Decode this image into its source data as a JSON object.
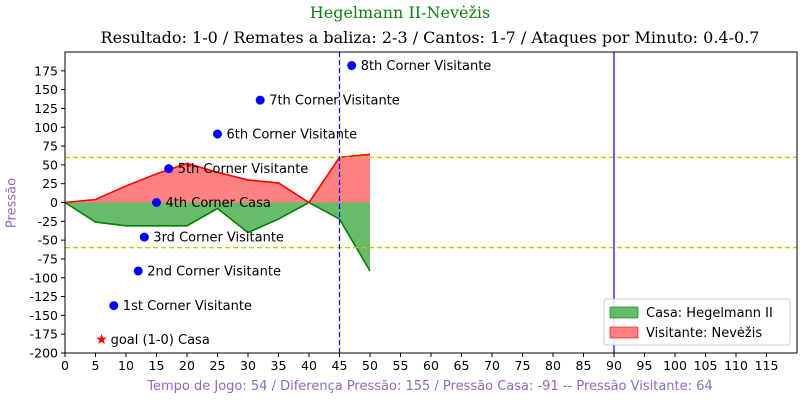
{
  "chart_data": {
    "type": "area",
    "title": "Hegelmann II-Nevėžis",
    "subtitle": "Resultado: 1-0 / Remates a baliza: 2-3 / Cantos: 1-7 / Ataques por Minuto: 0.4-0.7",
    "xlabel": "Tempo de Jogo: 54 / Diferença Pressão: 155 / Pressão Casa: -91 -- Pressão Visitante: 64",
    "ylabel": "Pressão",
    "xlim": [
      0,
      120
    ],
    "ylim": [
      -200,
      200
    ],
    "xticks": [
      0,
      5,
      10,
      15,
      20,
      25,
      30,
      35,
      40,
      45,
      50,
      55,
      60,
      65,
      70,
      75,
      80,
      85,
      90,
      95,
      100,
      105,
      110,
      115
    ],
    "yticks": [
      -200,
      -175,
      -150,
      -125,
      -100,
      -75,
      -50,
      -25,
      0,
      25,
      50,
      75,
      100,
      125,
      150,
      175
    ],
    "series": [
      {
        "name": "Casa: Hegelmann II",
        "color": "#008000",
        "fill": "#4caf50",
        "x": [
          0,
          5,
          10,
          15,
          20,
          25,
          30,
          35,
          40,
          45,
          50
        ],
        "values": [
          0,
          -26,
          -31,
          -31,
          -31,
          -8,
          -40,
          -22,
          0,
          -22,
          -91
        ]
      },
      {
        "name": "Visitante: Nevėžis",
        "color": "#ff0000",
        "fill": "#ff6b6b",
        "x": [
          0,
          5,
          10,
          15,
          20,
          25,
          30,
          35,
          40,
          45,
          50
        ],
        "values": [
          0,
          4,
          22,
          38,
          52,
          40,
          30,
          26,
          0,
          60,
          64
        ]
      }
    ],
    "hlines": [
      {
        "y": 60,
        "color": "#c8c800"
      },
      {
        "y": -60,
        "color": "#c8c800"
      }
    ],
    "vlines": [
      {
        "x": 45,
        "color": "#0000ff",
        "style": "dashed"
      },
      {
        "x": 90,
        "color": "#0000ff",
        "style": "solid"
      }
    ],
    "annotations": [
      {
        "x": 6,
        "y": -182,
        "marker": "star",
        "color": "#ff0000",
        "text": "goal (1-0) Casa"
      },
      {
        "x": 8,
        "y": -137,
        "marker": "dot",
        "color": "#0000ff",
        "text": "1st Corner Visitante"
      },
      {
        "x": 12,
        "y": -91,
        "marker": "dot",
        "color": "#0000ff",
        "text": "2nd Corner Visitante"
      },
      {
        "x": 13,
        "y": -46,
        "marker": "dot",
        "color": "#0000ff",
        "text": "3rd Corner Visitante"
      },
      {
        "x": 15,
        "y": 0,
        "marker": "dot",
        "color": "#0000ff",
        "text": "4th Corner Casa"
      },
      {
        "x": 17,
        "y": 45,
        "marker": "dot",
        "color": "#0000ff",
        "text": "5th Corner Visitante"
      },
      {
        "x": 25,
        "y": 91,
        "marker": "dot",
        "color": "#0000ff",
        "text": "6th Corner Visitante"
      },
      {
        "x": 32,
        "y": 136,
        "marker": "dot",
        "color": "#0000ff",
        "text": "7th Corner Visitante"
      },
      {
        "x": 47,
        "y": 182,
        "marker": "dot",
        "color": "#0000ff",
        "text": "8th Corner Visitante"
      }
    ],
    "legend": {
      "position": "lower-right"
    }
  }
}
